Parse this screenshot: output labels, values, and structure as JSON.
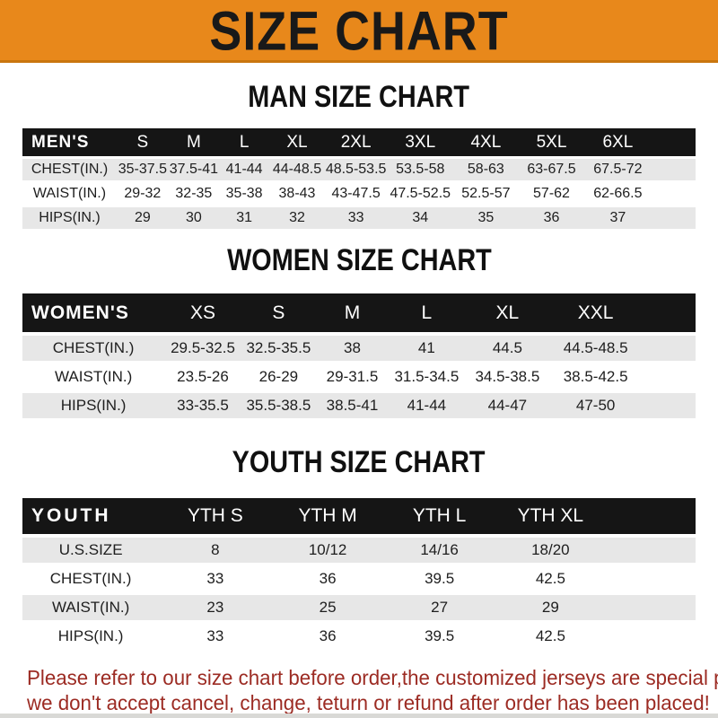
{
  "banner": {
    "title": "SIZE CHART",
    "bg_color": "#E8881B",
    "text_color": "#191919"
  },
  "colors": {
    "header_bar": "#151515",
    "row_gray": "#E7E7E7",
    "footer_red": "#9C2B23"
  },
  "men": {
    "heading": "MAN SIZE CHART",
    "corner": "MEN'S",
    "columns": [
      "S",
      "M",
      "L",
      "XL",
      "2XL",
      "3XL",
      "4XL",
      "5XL",
      "6XL"
    ],
    "rows": [
      {
        "label": "CHEST(IN.)",
        "values": [
          "35-37.5",
          "37.5-41",
          "41-44",
          "44-48.5",
          "48.5-53.5",
          "53.5-58",
          "58-63",
          "63-67.5",
          "67.5-72"
        ]
      },
      {
        "label": "WAIST(IN.)",
        "values": [
          "29-32",
          "32-35",
          "35-38",
          "38-43",
          "43-47.5",
          "47.5-52.5",
          "52.5-57",
          "57-62",
          "62-66.5"
        ]
      },
      {
        "label": "HIPS(IN.)",
        "values": [
          "29",
          "30",
          "31",
          "32",
          "33",
          "34",
          "35",
          "36",
          "37"
        ]
      }
    ]
  },
  "women": {
    "heading": "WOMEN SIZE CHART",
    "corner": "WOMEN'S",
    "columns": [
      "XS",
      "S",
      "M",
      "L",
      "XL",
      "XXL"
    ],
    "rows": [
      {
        "label": "CHEST(IN.)",
        "values": [
          "29.5-32.5",
          "32.5-35.5",
          "38",
          "41",
          "44.5",
          "44.5-48.5"
        ]
      },
      {
        "label": "WAIST(IN.)",
        "values": [
          "23.5-26",
          "26-29",
          "29-31.5",
          "31.5-34.5",
          "34.5-38.5",
          "38.5-42.5"
        ]
      },
      {
        "label": "HIPS(IN.)",
        "values": [
          "33-35.5",
          "35.5-38.5",
          "38.5-41",
          "41-44",
          "44-47",
          "47-50"
        ]
      }
    ]
  },
  "youth": {
    "heading": "YOUTH SIZE CHART",
    "corner": "YOUTH",
    "columns": [
      "YTH S",
      "YTH M",
      "YTH L",
      "YTH XL"
    ],
    "rows": [
      {
        "label": "U.S.SIZE",
        "values": [
          "8",
          "10/12",
          "14/16",
          "18/20"
        ]
      },
      {
        "label": "CHEST(IN.)",
        "values": [
          "33",
          "36",
          "39.5",
          "42.5"
        ]
      },
      {
        "label": "WAIST(IN.)",
        "values": [
          "23",
          "25",
          "27",
          "29"
        ]
      },
      {
        "label": "HIPS(IN.)",
        "values": [
          "33",
          "36",
          "39.5",
          "42.5"
        ]
      }
    ]
  },
  "footer": {
    "line1": "Please refer to our size chart before order,the customized jerseys are special products,",
    "line2": "we don't accept cancel, change, teturn or refund after order has been placed!"
  }
}
